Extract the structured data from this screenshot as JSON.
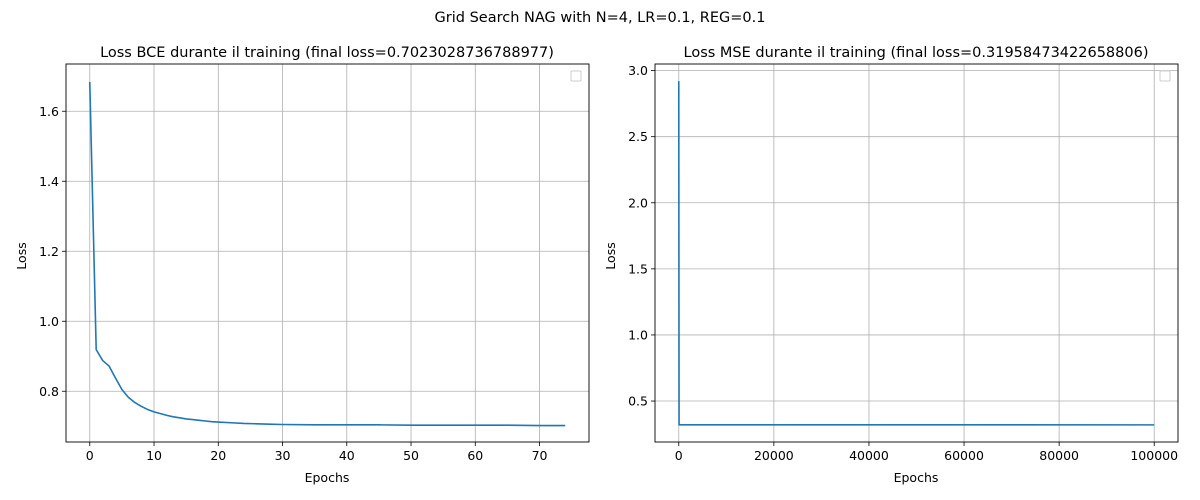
{
  "figure": {
    "suptitle": "Grid Search NAG with N=4, LR=0.1, REG=0.1"
  },
  "chart_data": [
    {
      "type": "line",
      "title": "Loss BCE durante il training (final loss=0.7023028736788977)",
      "xlabel": "Epochs",
      "ylabel": "Loss",
      "xlim": [
        -3.7,
        77.7
      ],
      "ylim": [
        0.655,
        1.735
      ],
      "xticks": [
        0,
        10,
        20,
        30,
        40,
        50,
        60,
        70
      ],
      "yticks": [
        0.8,
        1.0,
        1.2,
        1.4,
        1.6
      ],
      "xtick_labels": [
        "0",
        "10",
        "20",
        "30",
        "40",
        "50",
        "60",
        "70"
      ],
      "ytick_labels": [
        "0.8",
        "1.0",
        "1.2",
        "1.4",
        "1.6"
      ],
      "grid": true,
      "legend": "top-right (empty)",
      "series_color": "#1f77b4",
      "series": [
        {
          "x": [
            0,
            1,
            2,
            3,
            4,
            5,
            6,
            7,
            8,
            9,
            10,
            11,
            12,
            13,
            14,
            15,
            16,
            17,
            18,
            19,
            20,
            22,
            24,
            26,
            28,
            30,
            35,
            40,
            45,
            50,
            55,
            60,
            65,
            70,
            74
          ],
          "values": [
            1.684,
            0.919,
            0.888,
            0.872,
            0.838,
            0.805,
            0.783,
            0.768,
            0.757,
            0.748,
            0.741,
            0.736,
            0.731,
            0.727,
            0.724,
            0.721,
            0.719,
            0.717,
            0.715,
            0.713,
            0.712,
            0.71,
            0.708,
            0.707,
            0.706,
            0.705,
            0.704,
            0.704,
            0.704,
            0.703,
            0.703,
            0.703,
            0.703,
            0.702,
            0.702
          ]
        }
      ]
    },
    {
      "type": "line",
      "title": "Loss MSE durante il training (final loss=0.31958473422658806)",
      "xlabel": "Epochs",
      "ylabel": "Loss",
      "xlim": [
        -5000,
        105000
      ],
      "ylim": [
        0.19,
        3.05
      ],
      "xticks": [
        0,
        20000,
        40000,
        60000,
        80000,
        100000
      ],
      "yticks": [
        0.5,
        1.0,
        1.5,
        2.0,
        2.5,
        3.0
      ],
      "xtick_labels": [
        "0",
        "20000",
        "40000",
        "60000",
        "80000",
        "100000"
      ],
      "ytick_labels": [
        "0.5",
        "1.0",
        "1.5",
        "2.0",
        "2.5",
        "3.0"
      ],
      "grid": true,
      "legend": "top-right (empty)",
      "series_color": "#1f77b4",
      "series": [
        {
          "x": [
            0,
            60,
            100000
          ],
          "values": [
            2.92,
            0.32,
            0.3196
          ]
        }
      ]
    }
  ]
}
